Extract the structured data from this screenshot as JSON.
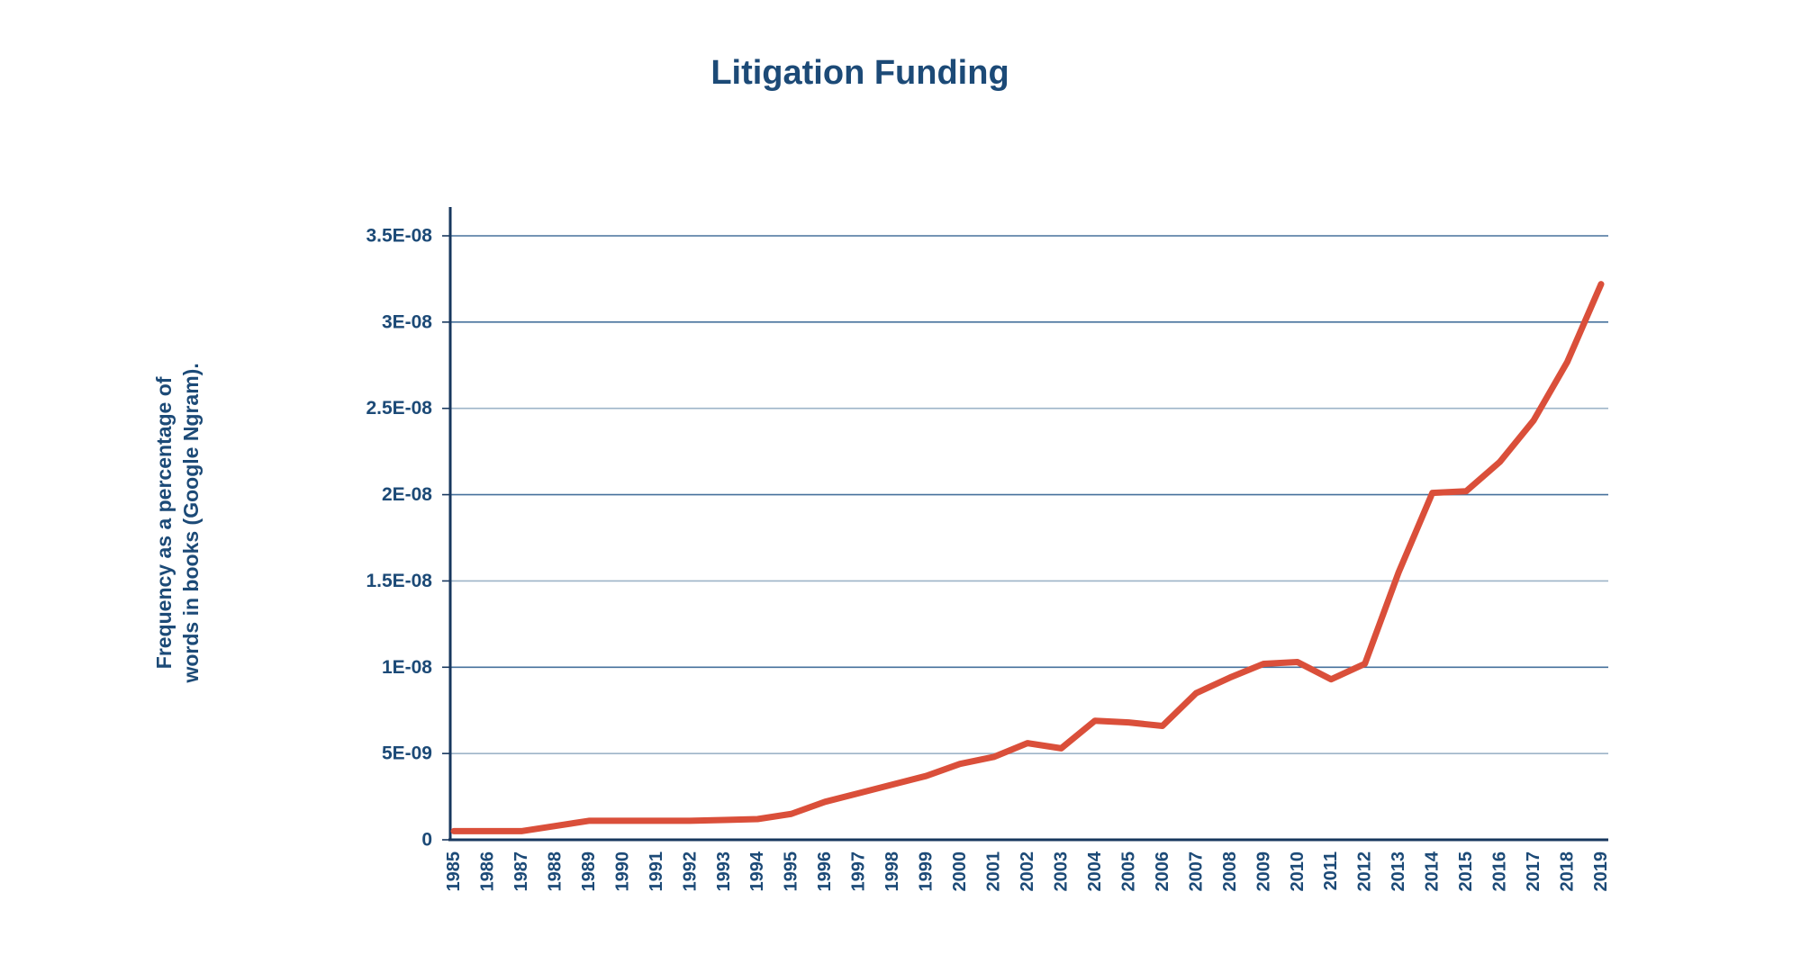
{
  "page": {
    "background_color": "#ffffff"
  },
  "chart_data": {
    "type": "line",
    "title": "Litigation Funding",
    "ylabel_line1": "Frequency as a percentage of",
    "ylabel_line2": "words in books (Google Ngram).",
    "xlabel": "",
    "legend": "none",
    "grid": "horizontal",
    "ylim": [
      0,
      3.5e-08
    ],
    "x": [
      1985,
      1986,
      1987,
      1988,
      1989,
      1990,
      1991,
      1992,
      1993,
      1994,
      1995,
      1996,
      1997,
      1998,
      1999,
      2000,
      2001,
      2002,
      2003,
      2004,
      2005,
      2006,
      2007,
      2008,
      2009,
      2010,
      2011,
      2012,
      2013,
      2014,
      2015,
      2016,
      2017,
      2018,
      2019
    ],
    "series": [
      {
        "name": "Litigation Funding",
        "color": "#da4f3a",
        "values": [
          5e-10,
          5e-10,
          5e-10,
          8e-10,
          1.1e-09,
          1.1e-09,
          1.1e-09,
          1.1e-09,
          1.15e-09,
          1.2e-09,
          1.5e-09,
          2.2e-09,
          2.7e-09,
          3.2e-09,
          3.7e-09,
          4.4e-09,
          4.8e-09,
          5.6e-09,
          5.3e-09,
          6.9e-09,
          6.8e-09,
          6.6e-09,
          8.5e-09,
          9.4e-09,
          1.02e-08,
          1.03e-08,
          9.3e-09,
          1.02e-08,
          1.55e-08,
          2.01e-08,
          2.02e-08,
          2.19e-08,
          2.43e-08,
          2.77e-08,
          3.22e-08
        ]
      }
    ],
    "y_ticks": [
      {
        "value": 0,
        "label": "0"
      },
      {
        "value": 5e-09,
        "label": "5E-09"
      },
      {
        "value": 1e-08,
        "label": "1E-08"
      },
      {
        "value": 1.5e-08,
        "label": "1.5E-08"
      },
      {
        "value": 2e-08,
        "label": "2E-08"
      },
      {
        "value": 2.5e-08,
        "label": "2.5E-08"
      },
      {
        "value": 3e-08,
        "label": "3E-08"
      },
      {
        "value": 3.5e-08,
        "label": "3.5E-08"
      }
    ]
  },
  "colors": {
    "text": "#1c4a77",
    "axis": "#17375e",
    "gridline_major": "#46719c",
    "gridline_minor": "#9db4c8",
    "line": "#da4f3a"
  }
}
